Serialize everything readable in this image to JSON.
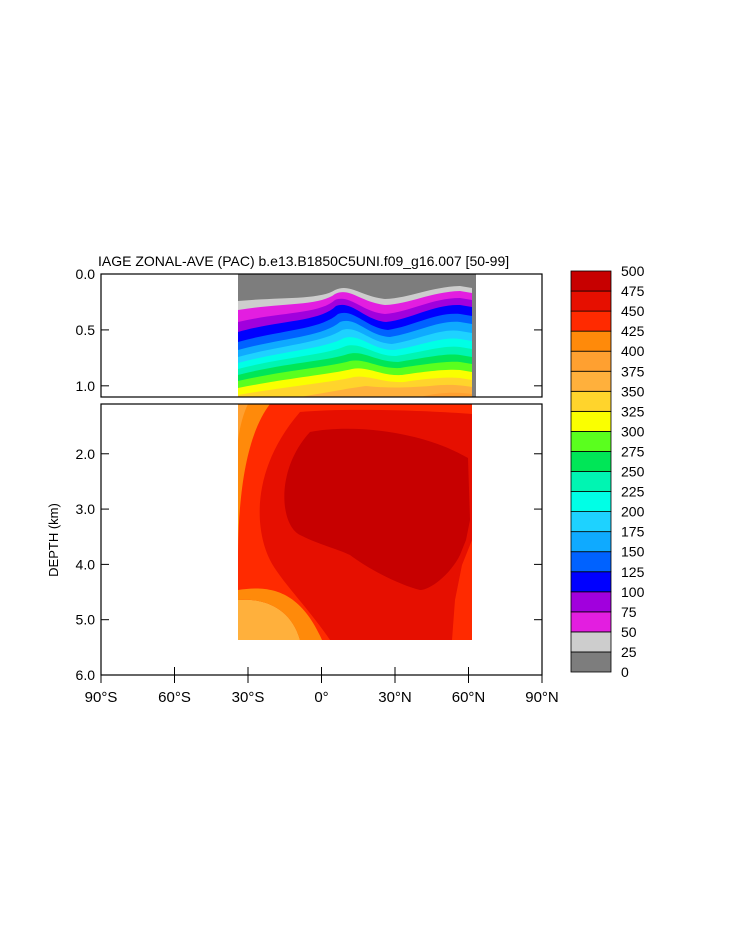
{
  "chart_data": {
    "type": "heatmap",
    "title": "IAGE ZONAL-AVE (PAC) b.e13.B1850C5UNI.f09_g16.007 [50-99]",
    "ylabel": "DEPTH (km)",
    "xlim": [
      -90,
      90
    ],
    "ylim": [
      0,
      6
    ],
    "x_ticks": [
      -90,
      -60,
      -30,
      0,
      30,
      60,
      90
    ],
    "x_tick_labels": [
      "90°S",
      "60°S",
      "30°S",
      "0°",
      "30°N",
      "60°N",
      "90°N"
    ],
    "upper_panel": {
      "depth_range": [
        0,
        1.1
      ],
      "y_ticks": [
        0,
        0.5,
        1.0
      ],
      "y_tick_labels": [
        "0.0",
        "0.5",
        "1.0"
      ]
    },
    "lower_panel": {
      "depth_range": [
        1.1,
        6.0
      ],
      "y_ticks": [
        2,
        3,
        4,
        5,
        6
      ],
      "y_tick_labels": [
        "2.0",
        "3.0",
        "4.0",
        "5.0",
        "6.0"
      ]
    },
    "data_extent_lat": [
      -34,
      62
    ],
    "colorbar": {
      "levels": [
        "0",
        "25",
        "50",
        "75",
        "100",
        "125",
        "150",
        "175",
        "200",
        "225",
        "250",
        "275",
        "300",
        "325",
        "350",
        "375",
        "400",
        "425",
        "450",
        "475",
        "500"
      ],
      "colors": [
        "#7d7d7d",
        "#cdcdcd",
        "#e31ee0",
        "#a100dd",
        "#0000ff",
        "#0062ff",
        "#0faaff",
        "#1ed2ff",
        "#00ffe6",
        "#00f5b2",
        "#00e657",
        "#5aff1e",
        "#faff00",
        "#ffd42c",
        "#ffb03c",
        "#ffa030",
        "#ff8a0a",
        "#ff2a00",
        "#e60f00",
        "#c70000"
      ]
    },
    "features": {
      "subsurface_age_range": "increases from about 0-50 at the surface to above 475 at depth",
      "max_age_region": "475-500 between 2 and 4 km depth, 10S to 60N"
    }
  }
}
